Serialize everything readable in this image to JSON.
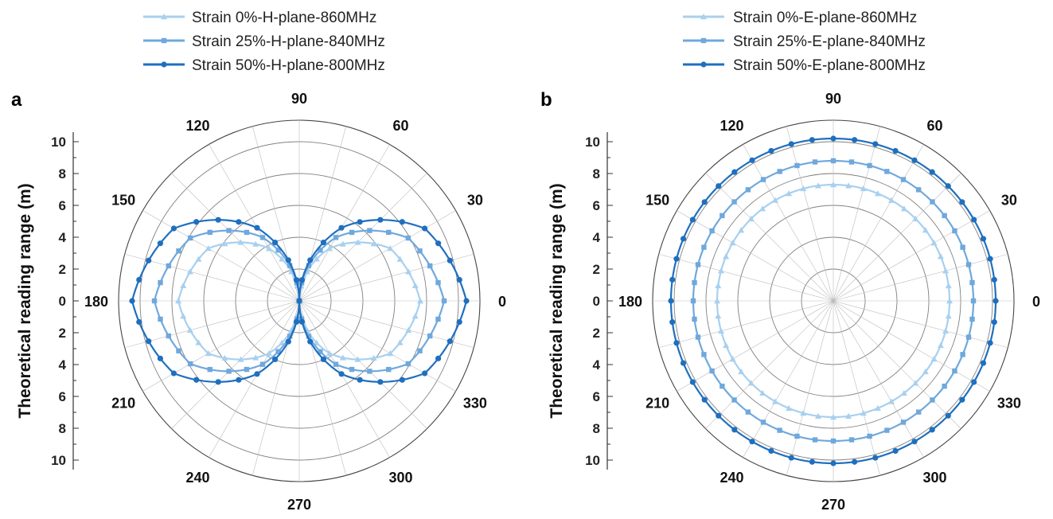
{
  "colors": {
    "s0": "#a8d0ef",
    "s25": "#6fa8dc",
    "s50": "#1f6fbf"
  },
  "chart_data": [
    {
      "panel_label": "a",
      "type": "polar-line",
      "ylabel": "Theoretical reading range (m)",
      "rlim": [
        0,
        10
      ],
      "r_ticks": [
        "0",
        "2",
        "4",
        "6",
        "8",
        "10"
      ],
      "angle_ticks": [
        "0",
        "30",
        "60",
        "90",
        "120",
        "150",
        "180",
        "210",
        "240",
        "270",
        "300",
        "330"
      ],
      "grid": true,
      "legend_position": "top-left",
      "series": [
        {
          "name": "Strain 0%-H-plane-860MHz",
          "marker": "triangle",
          "color_key": "s0",
          "theta": [
            0,
            30,
            60,
            90,
            120,
            150,
            180,
            210,
            240,
            270,
            300,
            330
          ],
          "r": [
            7.6,
            6.6,
            3.8,
            0,
            3.8,
            6.6,
            7.6,
            6.6,
            3.8,
            0,
            3.8,
            6.6
          ]
        },
        {
          "name": "Strain 25%-H-plane-840MHz",
          "marker": "square",
          "color_key": "s25",
          "theta": [
            0,
            30,
            60,
            90,
            120,
            150,
            180,
            210,
            240,
            270,
            300,
            330
          ],
          "r": [
            9.1,
            7.9,
            4.6,
            0,
            4.6,
            7.9,
            9.1,
            7.9,
            4.6,
            0,
            4.6,
            7.9
          ]
        },
        {
          "name": "Strain 50%-H-plane-800MHz",
          "marker": "circle",
          "color_key": "s50",
          "theta": [
            0,
            30,
            60,
            90,
            120,
            150,
            180,
            210,
            240,
            270,
            300,
            330
          ],
          "r": [
            10.5,
            9.1,
            5.3,
            0,
            5.3,
            9.1,
            10.5,
            9.1,
            5.3,
            0,
            5.3,
            9.1
          ]
        }
      ]
    },
    {
      "panel_label": "b",
      "type": "polar-line",
      "ylabel": "Theoretical reading range (m)",
      "rlim": [
        0,
        10
      ],
      "r_ticks": [
        "0",
        "2",
        "4",
        "6",
        "8",
        "10"
      ],
      "angle_ticks": [
        "0",
        "30",
        "60",
        "90",
        "120",
        "150",
        "180",
        "210",
        "240",
        "270",
        "300",
        "330"
      ],
      "grid": true,
      "legend_position": "top-right",
      "series": [
        {
          "name": "Strain 0%-E-plane-860MHz",
          "marker": "triangle",
          "color_key": "s0",
          "theta": [
            0,
            30,
            60,
            90,
            120,
            150,
            180,
            210,
            240,
            270,
            300,
            330
          ],
          "r": [
            7.3,
            7.3,
            7.3,
            7.3,
            7.3,
            7.3,
            7.3,
            7.3,
            7.3,
            7.3,
            7.3,
            7.3
          ]
        },
        {
          "name": "Strain 25%-E-plane-840MHz",
          "marker": "square",
          "color_key": "s25",
          "theta": [
            0,
            30,
            60,
            90,
            120,
            150,
            180,
            210,
            240,
            270,
            300,
            330
          ],
          "r": [
            8.8,
            8.8,
            8.8,
            8.8,
            8.8,
            8.8,
            8.8,
            8.8,
            8.8,
            8.8,
            8.8,
            8.8
          ]
        },
        {
          "name": "Strain 50%-E-plane-800MHz",
          "marker": "circle",
          "color_key": "s50",
          "theta": [
            0,
            30,
            60,
            90,
            120,
            150,
            180,
            210,
            240,
            270,
            300,
            330
          ],
          "r": [
            10.2,
            10.2,
            10.2,
            10.2,
            10.2,
            10.2,
            10.2,
            10.2,
            10.2,
            10.2,
            10.2,
            10.2
          ]
        }
      ]
    }
  ]
}
